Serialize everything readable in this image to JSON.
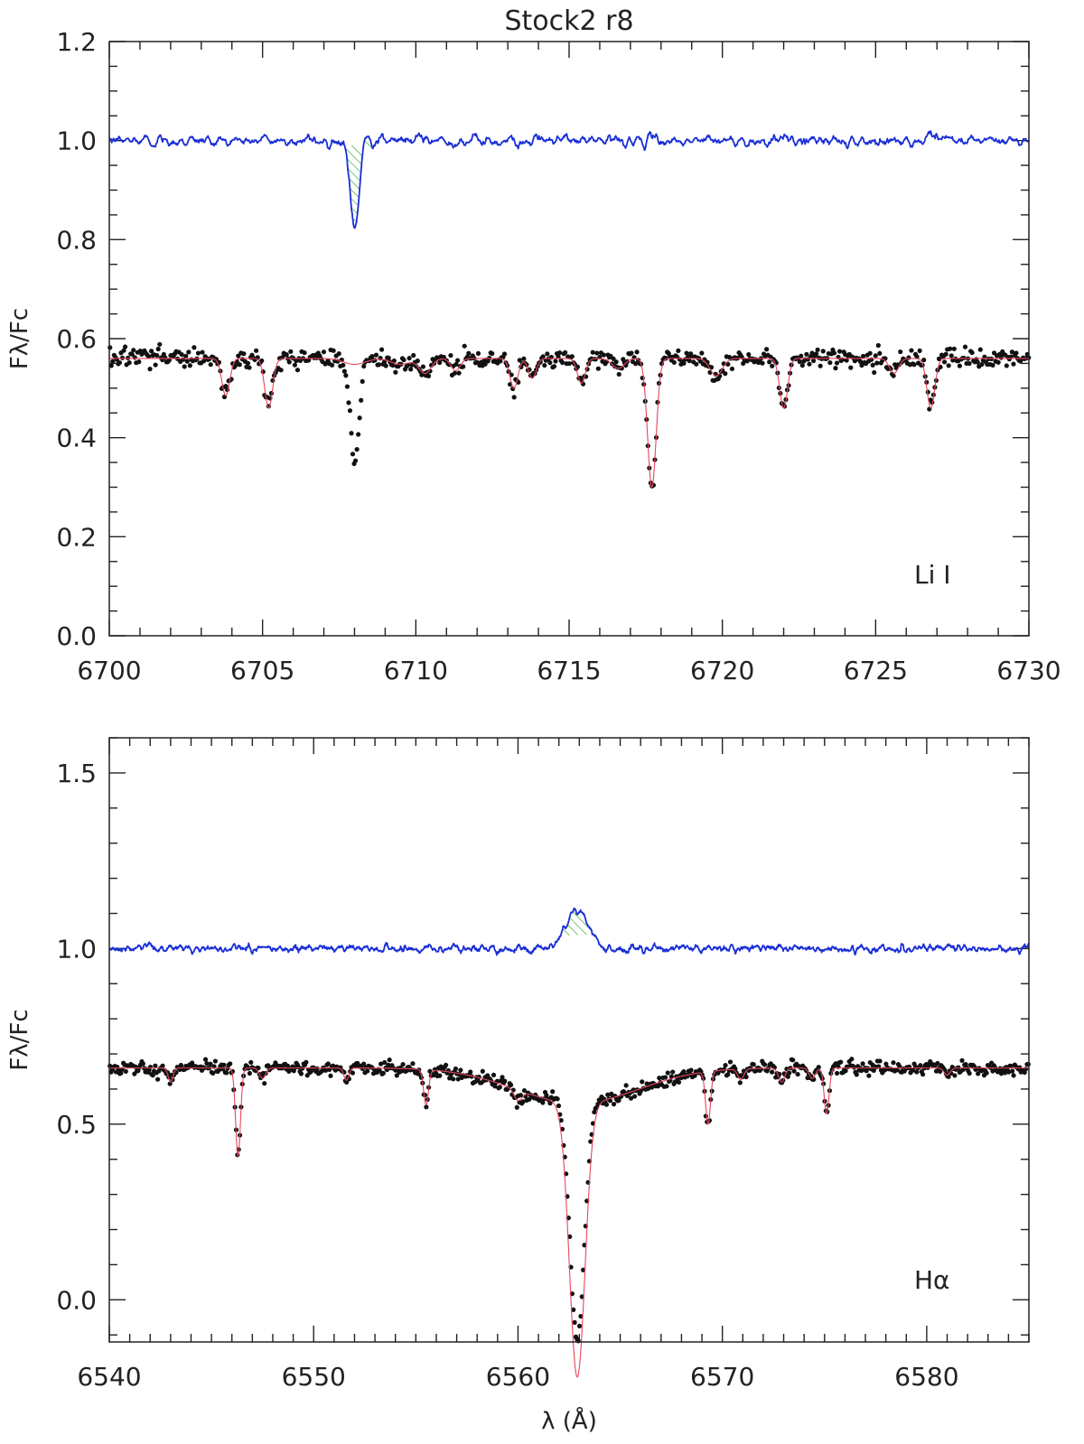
{
  "figure": {
    "title": "Stock2 r8",
    "colors": {
      "observed": "#111111",
      "model": "#e8455f",
      "subtracted": "#1a2fd6",
      "hatch": "#2aa52a",
      "axis": "#222222"
    }
  },
  "chart_data": [
    {
      "type": "line",
      "panel": "top",
      "annotation": "Li I",
      "ylabel": "Fλ/Fc",
      "xlabel": "",
      "xlim": [
        6700,
        6730
      ],
      "ylim": [
        0.0,
        1.2
      ],
      "xticks": [
        6700,
        6705,
        6710,
        6715,
        6720,
        6725,
        6730
      ],
      "yticks": [
        0.0,
        0.2,
        0.4,
        0.6,
        0.8,
        1.0,
        1.2
      ],
      "x_minor_step": 1,
      "y_minor_step": 0.05,
      "hatch_range": [
        6707.5,
        6708.6
      ],
      "observed_level": 0.56,
      "subtracted_level": 1.0,
      "lines": [
        {
          "x": 6703.8,
          "depth": 0.075,
          "width": 0.13
        },
        {
          "x": 6705.2,
          "depth": 0.1,
          "width": 0.13
        },
        {
          "x": 6708.0,
          "depth": 0.18,
          "width": 0.14,
          "subtracted": true
        },
        {
          "x": 6709.5,
          "depth": 0.012,
          "width": 0.3
        },
        {
          "x": 6710.3,
          "depth": 0.03,
          "width": 0.2
        },
        {
          "x": 6711.3,
          "depth": 0.025,
          "width": 0.15
        },
        {
          "x": 6713.2,
          "depth": 0.06,
          "width": 0.13
        },
        {
          "x": 6713.8,
          "depth": 0.04,
          "width": 0.13
        },
        {
          "x": 6715.4,
          "depth": 0.05,
          "width": 0.13
        },
        {
          "x": 6716.6,
          "depth": 0.02,
          "width": 0.2
        },
        {
          "x": 6717.7,
          "depth": 0.26,
          "width": 0.14
        },
        {
          "x": 6719.8,
          "depth": 0.035,
          "width": 0.2
        },
        {
          "x": 6722.0,
          "depth": 0.1,
          "width": 0.13
        },
        {
          "x": 6725.6,
          "depth": 0.03,
          "width": 0.15
        },
        {
          "x": 6726.8,
          "depth": 0.1,
          "width": 0.13
        }
      ],
      "series": [
        {
          "name": "",
          "role": "observed",
          "style": "dots",
          "step": 0.045
        },
        {
          "name": "",
          "role": "model",
          "style": "thin-line"
        },
        {
          "name": "",
          "role": "subtracted",
          "style": "line"
        }
      ]
    },
    {
      "type": "line",
      "panel": "bottom",
      "annotation": "Hα",
      "ylabel": "Fλ/Fc",
      "xlabel": "λ (Å)",
      "xlim": [
        6540,
        6585
      ],
      "ylim": [
        -0.12,
        1.6
      ],
      "xticks": [
        6540,
        6550,
        6560,
        6570,
        6580
      ],
      "yticks": [
        0.0,
        0.5,
        1.0,
        1.5
      ],
      "x_minor_step": 1,
      "y_minor_step": 0.1,
      "hatch_range": [
        6562.1,
        6563.7
      ],
      "observed_level": 0.66,
      "subtracted_level": 1.0,
      "halpha": {
        "x": 6562.9,
        "depth": 0.78,
        "width": 0.38,
        "wing_depth": 0.1,
        "wing_width": 3.0,
        "fill_in": 0.11,
        "emission_width": 0.55
      },
      "lines": [
        {
          "x": 6543.0,
          "depth": 0.04,
          "width": 0.12
        },
        {
          "x": 6546.3,
          "depth": 0.25,
          "width": 0.12
        },
        {
          "x": 6547.5,
          "depth": 0.03,
          "width": 0.15
        },
        {
          "x": 6551.6,
          "depth": 0.035,
          "width": 0.12
        },
        {
          "x": 6555.5,
          "depth": 0.1,
          "width": 0.12
        },
        {
          "x": 6560.0,
          "depth": 0.03,
          "width": 0.2
        },
        {
          "x": 6569.3,
          "depth": 0.15,
          "width": 0.12
        },
        {
          "x": 6570.9,
          "depth": 0.03,
          "width": 0.15
        },
        {
          "x": 6572.9,
          "depth": 0.04,
          "width": 0.15
        },
        {
          "x": 6574.4,
          "depth": 0.03,
          "width": 0.15
        },
        {
          "x": 6575.1,
          "depth": 0.13,
          "width": 0.12
        },
        {
          "x": 6581.0,
          "depth": 0.02,
          "width": 0.15
        }
      ],
      "series": [
        {
          "name": "",
          "role": "observed",
          "style": "dots",
          "step": 0.06
        },
        {
          "name": "",
          "role": "model",
          "style": "thin-line"
        },
        {
          "name": "",
          "role": "subtracted",
          "style": "line"
        }
      ]
    }
  ]
}
